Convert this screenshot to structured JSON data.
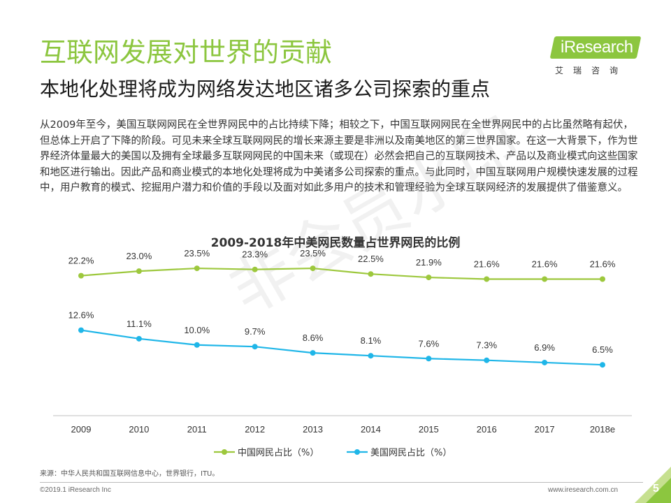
{
  "header": {
    "title": "互联网发展对世界的贡献",
    "subtitle": "本地化处理将成为网络发达地区诸多公司探索的重点"
  },
  "logo": {
    "brand": "iResearch",
    "cn": "艾瑞咨询"
  },
  "intro": "从2009年至今，美国互联网网民在全世界网民中的占比持续下降；相较之下，中国互联网网民在全世界网民中的占比虽然略有起伏，但总体上开启了下降的阶段。可见未来全球互联网网民的增长来源主要是非洲以及南美地区的第三世界国家。在这一大背景下，作为世界经济体量最大的美国以及拥有全球最多互联网网民的中国未来（或现在）必然会把自己的互联网技术、产品以及商业模式向这些国家和地区进行输出。因此产品和商业模式的本地化处理将成为中美诸多公司探索的重点。与此同时，中国互联网用户规模快速发展的过程中，用户教育的模式、挖掘用户潜力和价值的手段以及面对如此多用户的技术和管理经验为全球互联网经济的发展提供了借鉴意义。",
  "watermark": "非会员水印",
  "chart_data": {
    "type": "line",
    "title": "2009-2018年中美网民数量占世界网民的比例",
    "categories": [
      "2009",
      "2010",
      "2011",
      "2012",
      "2013",
      "2014",
      "2015",
      "2016",
      "2017",
      "2018e"
    ],
    "series": [
      {
        "name": "中国网民占比（%）",
        "values": [
          22.2,
          23.0,
          23.5,
          23.3,
          23.5,
          22.5,
          21.9,
          21.6,
          21.6,
          21.6
        ],
        "labels": [
          "22.2%",
          "23.0%",
          "23.5%",
          "23.3%",
          "23.5%",
          "22.5%",
          "21.9%",
          "21.6%",
          "21.6%",
          "21.6%"
        ],
        "color": "#9dc83d"
      },
      {
        "name": "美国网民占比（%）",
        "values": [
          12.6,
          11.1,
          10.0,
          9.7,
          8.6,
          8.1,
          7.6,
          7.3,
          6.9,
          6.5
        ],
        "labels": [
          "12.6%",
          "11.1%",
          "10.0%",
          "9.7%",
          "8.6%",
          "8.1%",
          "7.6%",
          "7.3%",
          "6.9%",
          "6.5%"
        ],
        "color": "#1fb6e8"
      }
    ],
    "ylim": [
      0,
      24
    ],
    "axis_color": "#bfbfbf",
    "grid": false,
    "legend_position": "bottom"
  },
  "footer": {
    "source": "来源：中华人民共和国互联网信息中心，世界银行，ITU。",
    "copyright": "©2019.1 iResearch Inc",
    "website": "www.iresearch.com.cn",
    "page": "5"
  },
  "colors": {
    "accent": "#8cc63f",
    "corner_light": "#c6e08f",
    "corner_dark": "#8cc63f"
  }
}
